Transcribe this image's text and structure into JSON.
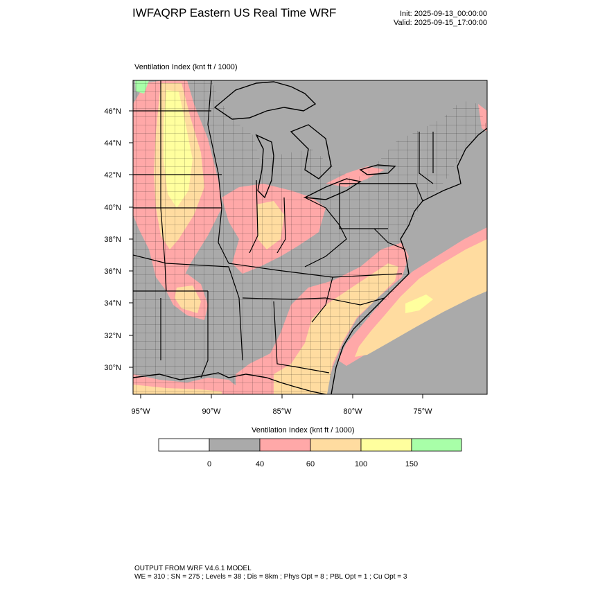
{
  "header": {
    "title": "IWFAQRP Eastern US Real Time WRF",
    "init": "Init: 2025-09-13_00:00:00",
    "valid": "Valid: 2025-09-15_17:00:00"
  },
  "field": {
    "label": "Ventilation Index   (knt ft / 1000)"
  },
  "map": {
    "lat_labels": [
      "46°N",
      "44°N",
      "42°N",
      "40°N",
      "38°N",
      "36°N",
      "34°N",
      "32°N",
      "30°N"
    ],
    "lon_labels": [
      "95°W",
      "90°W",
      "85°W",
      "80°W",
      "75°W"
    ],
    "colors": {
      "land": "#aaaaaa",
      "water": "#aaaaaa",
      "band_40_60": "#ffa8a8",
      "band_60_100": "#ffdca0",
      "band_100_150": "#ffff9e",
      "band_150_plus": "#a8ffa8",
      "borders": "#000000"
    }
  },
  "colorbar": {
    "title": "Ventilation Index  (knt ft / 1000)",
    "colors": [
      "#ffffff",
      "#aaaaaa",
      "#ffa8a8",
      "#ffdca0",
      "#ffff9e",
      "#a8ffa8"
    ],
    "ticks": [
      "0",
      "40",
      "60",
      "100",
      "150"
    ]
  },
  "footer": {
    "line1": "OUTPUT FROM WRF V4.6.1 MODEL",
    "line2": "WE = 310 ; SN = 275 ; Levels = 38 ; Dis = 8km ; Phys Opt = 8 ; PBL Opt = 1 ; Cu Opt = 3"
  }
}
